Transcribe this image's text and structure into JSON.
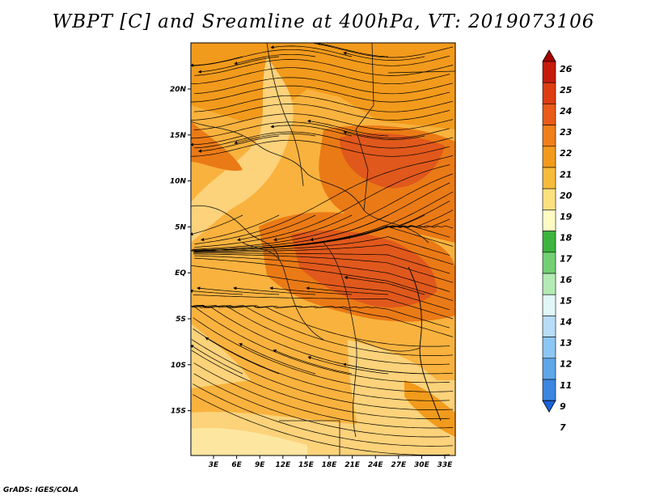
{
  "title": "WBPT [C] and Sreamline at 400hPa, VT: 2019073106",
  "credit": "GrADS: IGES/COLA",
  "map": {
    "lon_labels": [
      "3E",
      "6E",
      "9E",
      "12E",
      "15E",
      "18E",
      "21E",
      "24E",
      "27E",
      "30E",
      "33E"
    ],
    "lat_labels": [
      "20N",
      "15N",
      "10N",
      "5N",
      "EQ",
      "5S",
      "10S",
      "15S"
    ],
    "field_colors": {
      "very_light": "#fde6a0",
      "light": "#fcd27a",
      "mid": "#f9b23e",
      "orange": "#f29a1c",
      "dark_orange": "#ea7a16",
      "red_orange": "#e0581c"
    },
    "streamline_color": "#000000",
    "border_color": "#111111"
  },
  "colorbar": {
    "labels": [
      "26",
      "25",
      "24",
      "23",
      "22",
      "21",
      "20",
      "19",
      "18",
      "17",
      "16",
      "15",
      "14",
      "13",
      "12",
      "11",
      "9",
      "7"
    ],
    "colors": [
      "#a50000",
      "#c61a0c",
      "#de3c12",
      "#ea5a18",
      "#f07e1a",
      "#f29a1c",
      "#f7bb3a",
      "#fce07e",
      "#fffbc2",
      "#3db43d",
      "#72d072",
      "#b4eab4",
      "#e0f6f7",
      "#b8dcf6",
      "#8cc6f2",
      "#5ea6e8",
      "#3a86e0",
      "#1a62d8"
    ]
  }
}
